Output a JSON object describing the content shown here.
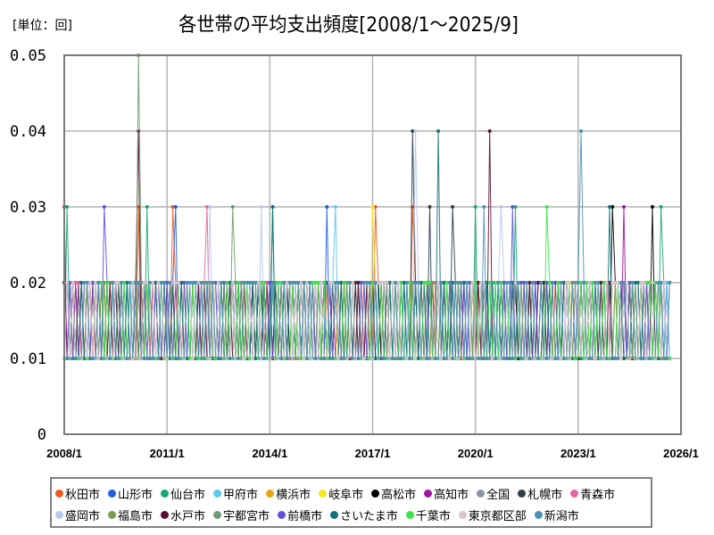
{
  "header": {
    "unit_label": "[単位：回]",
    "title": "各世帯の平均支出頻度[2008/1～2025/9]"
  },
  "chart_data": {
    "type": "line",
    "title": "各世帯の平均支出頻度[2008/1～2025/9]",
    "unit": "回",
    "xlabel": "",
    "ylabel": "",
    "x_start": "2008/1",
    "x_end": "2025/9",
    "x_ticks": [
      "2008/1",
      "2011/1",
      "2014/1",
      "2017/1",
      "2020/1",
      "2023/1",
      "2026/1"
    ],
    "y_ticks": [
      "0",
      "0.01",
      "0.02",
      "0.03",
      "0.04",
      "0.05"
    ],
    "ylim": [
      0,
      0.05
    ],
    "grid": true,
    "legend_position": "bottom",
    "value_encoding": "each character = one month from 2008/1; digit d means value d×0.01",
    "series": [
      {
        "name": "秋田市",
        "color": "#f05a1e",
        "peaks": [
          {
            "x": "2010/3",
            "y": 0.03
          },
          {
            "x": "2011/3",
            "y": 0.03
          },
          {
            "x": "2017/2",
            "y": 0.03
          },
          {
            "x": "2018/3",
            "y": 0.03
          }
        ]
      },
      {
        "name": "山形市",
        "color": "#1f5fe0",
        "peaks": [
          {
            "x": "2011/4",
            "y": 0.03
          },
          {
            "x": "2015/9",
            "y": 0.03
          }
        ]
      },
      {
        "name": "仙台市",
        "color": "#18a878",
        "peaks": [
          {
            "x": "2008/2",
            "y": 0.03
          },
          {
            "x": "2010/6",
            "y": 0.03
          },
          {
            "x": "2014/2",
            "y": 0.03
          },
          {
            "x": "2020/1",
            "y": 0.03
          },
          {
            "x": "2021/3",
            "y": 0.03
          },
          {
            "x": "2025/6",
            "y": 0.03
          }
        ]
      },
      {
        "name": "甲府市",
        "color": "#5ac8f0",
        "peaks": [
          {
            "x": "2015/12",
            "y": 0.03
          }
        ]
      },
      {
        "name": "横浜市",
        "color": "#e8a51c",
        "peaks": []
      },
      {
        "name": "岐阜市",
        "color": "#f5e61e",
        "peaks": [
          {
            "x": "2017/1",
            "y": 0.03
          }
        ]
      },
      {
        "name": "高松市",
        "color": "#000000",
        "peaks": [
          {
            "x": "2024/1",
            "y": 0.03
          },
          {
            "x": "2025/3",
            "y": 0.03
          }
        ]
      },
      {
        "name": "高知市",
        "color": "#a0149b",
        "peaks": [
          {
            "x": "2008/1",
            "y": 0.03
          },
          {
            "x": "2024/5",
            "y": 0.03
          }
        ]
      },
      {
        "name": "全国",
        "color": "#8c96a0",
        "peaks": []
      },
      {
        "name": "札幌市",
        "color": "#2d3c46",
        "peaks": [
          {
            "x": "2018/3",
            "y": 0.04
          },
          {
            "x": "2018/9",
            "y": 0.03
          },
          {
            "x": "2019/5",
            "y": 0.03
          }
        ]
      },
      {
        "name": "青森市",
        "color": "#e6649b",
        "peaks": [
          {
            "x": "2012/3",
            "y": 0.03
          }
        ]
      },
      {
        "name": "盛岡市",
        "color": "#b9c8f0",
        "peaks": [
          {
            "x": "2012/4",
            "y": 0.03
          },
          {
            "x": "2013/10",
            "y": 0.03
          },
          {
            "x": "2018/4",
            "y": 0.04
          },
          {
            "x": "2020/10",
            "y": 0.03
          }
        ]
      },
      {
        "name": "福島市",
        "color": "#7d9b55",
        "peaks": []
      },
      {
        "name": "水戸市",
        "color": "#5a0f32",
        "peaks": [
          {
            "x": "2010/3",
            "y": 0.04
          },
          {
            "x": "2020/6",
            "y": 0.04
          }
        ]
      },
      {
        "name": "宇都宮市",
        "color": "#6e9b73",
        "peaks": [
          {
            "x": "2010/3",
            "y": 0.05
          },
          {
            "x": "2012/12",
            "y": 0.03
          }
        ]
      },
      {
        "name": "前橋市",
        "color": "#6450dc",
        "peaks": [
          {
            "x": "2009/3",
            "y": 0.03
          },
          {
            "x": "2021/2",
            "y": 0.03
          }
        ]
      },
      {
        "name": "さいたま市",
        "color": "#0f7378",
        "peaks": [
          {
            "x": "2014/2",
            "y": 0.03
          },
          {
            "x": "2018/12",
            "y": 0.04
          },
          {
            "x": "2023/12",
            "y": 0.03
          }
        ]
      },
      {
        "name": "千葉市",
        "color": "#3ce646",
        "peaks": [
          {
            "x": "2022/2",
            "y": 0.03
          }
        ]
      },
      {
        "name": "東京都区部",
        "color": "#dcc3cd",
        "peaks": []
      },
      {
        "name": "新潟市",
        "color": "#4b91b4",
        "peaks": [
          {
            "x": "2020/4",
            "y": 0.03
          },
          {
            "x": "2023/2",
            "y": 0.04
          }
        ]
      }
    ]
  },
  "legend": {
    "rows": [
      [
        {
          "label": "秋田市",
          "color": "#f05a1e"
        },
        {
          "label": "山形市",
          "color": "#1f5fe0"
        },
        {
          "label": "仙台市",
          "color": "#18a878"
        },
        {
          "label": "甲府市",
          "color": "#5ac8f0"
        },
        {
          "label": "横浜市",
          "color": "#e8a51c"
        },
        {
          "label": "岐阜市",
          "color": "#f5e61e"
        },
        {
          "label": "高松市",
          "color": "#000000"
        },
        {
          "label": "高知市",
          "color": "#a0149b"
        },
        {
          "label": "全国",
          "color": "#8c96a0"
        },
        {
          "label": "札幌市",
          "color": "#2d3c46"
        },
        {
          "label": "青森市",
          "color": "#e6649b"
        }
      ],
      [
        {
          "label": "盛岡市",
          "color": "#b9c8f0"
        },
        {
          "label": "福島市",
          "color": "#7d9b55"
        },
        {
          "label": "水戸市",
          "color": "#5a0f32"
        },
        {
          "label": "宇都宮市",
          "color": "#6e9b73"
        },
        {
          "label": "前橋市",
          "color": "#6450dc"
        },
        {
          "label": "さいたま市",
          "color": "#0f7378"
        },
        {
          "label": "千葉市",
          "color": "#3ce646"
        },
        {
          "label": "東京都区部",
          "color": "#dcc3cd"
        },
        {
          "label": "新潟市",
          "color": "#4b91b4"
        }
      ]
    ]
  }
}
